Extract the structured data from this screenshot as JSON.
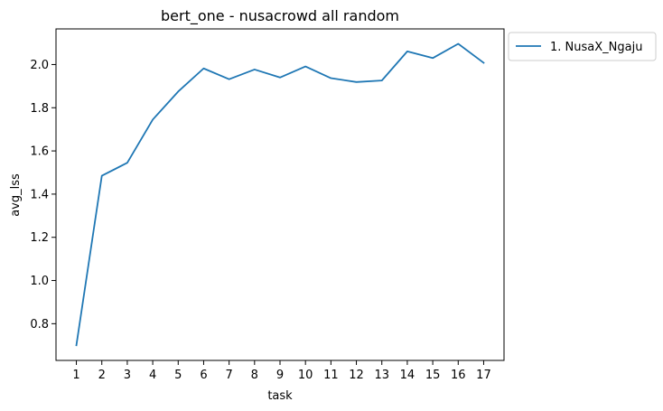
{
  "chart_data": {
    "type": "line",
    "title": "bert_one - nusacrowd all random",
    "xlabel": "task",
    "ylabel": "avg_lss",
    "x": [
      1,
      2,
      3,
      4,
      5,
      6,
      7,
      8,
      9,
      10,
      11,
      12,
      13,
      14,
      15,
      16,
      17
    ],
    "xticks": [
      "1",
      "2",
      "3",
      "4",
      "5",
      "6",
      "7",
      "8",
      "9",
      "10",
      "11",
      "12",
      "13",
      "14",
      "15",
      "16",
      "17"
    ],
    "yticks": [
      "0.8",
      "1.0",
      "1.2",
      "1.4",
      "1.6",
      "1.8",
      "2.0"
    ],
    "ylim": [
      0.63,
      2.165
    ],
    "xlim": [
      0.2,
      17.8
    ],
    "grid": false,
    "legend_position": "outside-top-right",
    "series": [
      {
        "name": "1. NusaX_Ngaju",
        "color": "#1f77b4",
        "values": [
          0.7,
          1.485,
          1.545,
          1.745,
          1.875,
          1.982,
          1.932,
          1.977,
          1.94,
          1.991,
          1.937,
          1.919,
          1.926,
          2.061,
          2.03,
          2.096,
          2.008
        ]
      }
    ]
  }
}
